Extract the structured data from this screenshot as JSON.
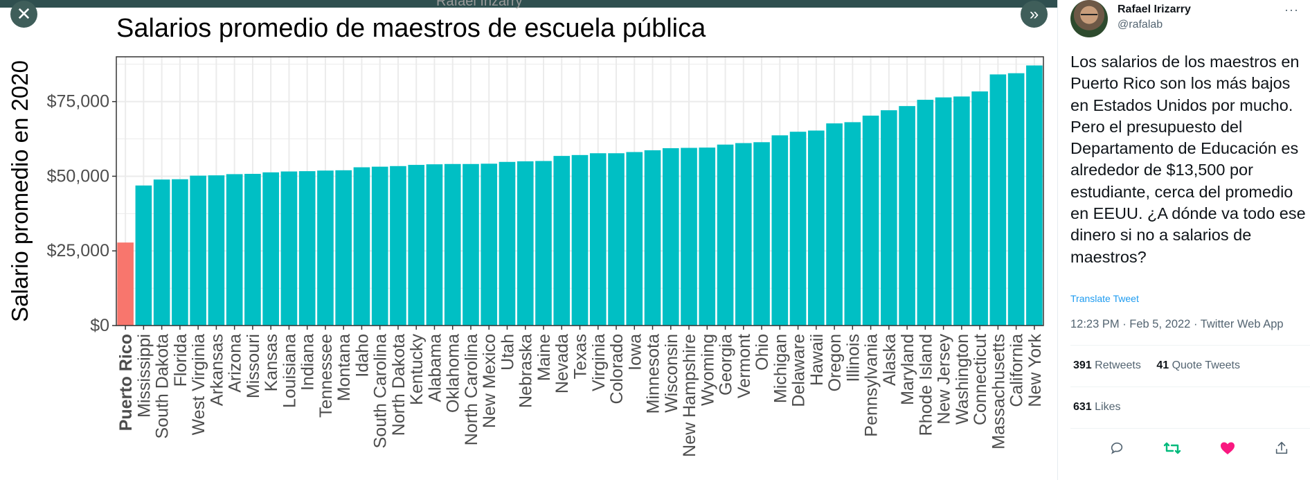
{
  "viewer": {
    "ghost_text": "Rafael Irizarry",
    "close_glyph": "✕",
    "next_glyph": "»"
  },
  "chart": {
    "title": "Salarios promedio de maestros de escuela pública",
    "ylabel": "Salario promedio en 2020",
    "colors": {
      "highlight": "#f8766d",
      "bars": "#00bfc4",
      "panel_bg": "#ffffff",
      "grid": "#ebebeb"
    }
  },
  "chart_data": {
    "type": "bar",
    "title": "Salarios promedio de maestros de escuela pública",
    "xlabel": "",
    "ylabel": "Salario promedio en 2020",
    "ylim": [
      0,
      90000
    ],
    "yticks": [
      0,
      25000,
      50000,
      75000
    ],
    "ytick_labels": [
      "$0",
      "$25,000",
      "$50,000",
      "$75,000"
    ],
    "grid": true,
    "highlight": "Puerto Rico",
    "categories": [
      "Puerto Rico",
      "Mississippi",
      "South Dakota",
      "Florida",
      "West Virginia",
      "Arkansas",
      "Arizona",
      "Missouri",
      "Kansas",
      "Louisiana",
      "Indiana",
      "Tennessee",
      "Montana",
      "Idaho",
      "South Carolina",
      "North Dakota",
      "Kentucky",
      "Alabama",
      "Oklahoma",
      "North Carolina",
      "New Mexico",
      "Utah",
      "Nebraska",
      "Maine",
      "Nevada",
      "Texas",
      "Virginia",
      "Colorado",
      "Iowa",
      "Minnesota",
      "Wisconsin",
      "New Hampshire",
      "Wyoming",
      "Georgia",
      "Vermont",
      "Ohio",
      "Michigan",
      "Delaware",
      "Hawaii",
      "Oregon",
      "Illinois",
      "Pennsylvania",
      "Alaska",
      "Maryland",
      "Rhode Island",
      "New Jersey",
      "Washington",
      "Connecticut",
      "Massachusetts",
      "California",
      "New York"
    ],
    "values": [
      27800,
      46900,
      48900,
      49000,
      50200,
      50300,
      50700,
      50800,
      51300,
      51600,
      51700,
      51900,
      52000,
      53000,
      53200,
      53400,
      53800,
      54000,
      54100,
      54100,
      54200,
      54800,
      55000,
      55100,
      56800,
      57100,
      57700,
      57700,
      58100,
      58700,
      59400,
      59500,
      59600,
      60600,
      61100,
      61400,
      63700,
      64900,
      65300,
      67700,
      68100,
      70300,
      72100,
      73500,
      75600,
      76400,
      76700,
      78400,
      84100,
      84500,
      87100
    ]
  },
  "tweet": {
    "display_name": "Rafael Irizarry",
    "handle": "@rafalab",
    "more": "···",
    "text": "Los salarios de los maestros en Puerto Rico son los más bajos en Estados Unidos por mucho. Pero el presupuesto del Departamento de Educación es alrededor de $13,500 por estudiante, cerca del promedio en EEUU. ¿A dónde va todo ese dinero si no a salarios de maestros?",
    "translate": "Translate Tweet",
    "timestamp": "12:23 PM · Feb 5, 2022 · Twitter Web App",
    "retweets_count": "391",
    "retweets_label": "Retweets",
    "quotes_count": "41",
    "quotes_label": "Quote Tweets",
    "likes_count": "631",
    "likes_label": "Likes",
    "colors": {
      "retweet": "#00ba7c",
      "like": "#f91880",
      "icon": "#536471"
    }
  }
}
